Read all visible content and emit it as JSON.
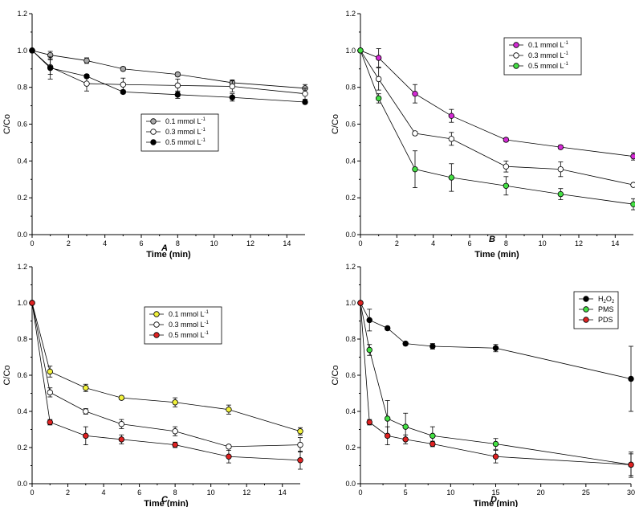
{
  "chart_data": [
    {
      "type": "line",
      "panel": "A",
      "xlabel": "Time (min)",
      "ylabel": "C/Co",
      "xlim": [
        0,
        15
      ],
      "ylim": [
        0,
        1.2
      ],
      "xticks": [
        0,
        2,
        4,
        6,
        8,
        10,
        12,
        14
      ],
      "yticks": [
        0.0,
        0.2,
        0.4,
        0.6,
        0.8,
        1.0,
        1.2
      ],
      "legend_position": "center-right",
      "series": [
        {
          "name": "0.1 mmol L",
          "sup": "-1",
          "marker": "#a8a8a8",
          "x": [
            0,
            1,
            3,
            5,
            8,
            11,
            15
          ],
          "y": [
            1.0,
            0.975,
            0.945,
            0.9,
            0.87,
            0.825,
            0.795
          ],
          "err": [
            0,
            0.02,
            0.015,
            0.01,
            0.01,
            0.015,
            0.02
          ]
        },
        {
          "name": "0.3 mmol L",
          "sup": "-1",
          "marker": "#ffffff",
          "x": [
            0,
            1,
            3,
            5,
            8,
            11,
            15
          ],
          "y": [
            1.0,
            0.91,
            0.82,
            0.815,
            0.81,
            0.805,
            0.765
          ],
          "err": [
            0,
            0.04,
            0.04,
            0.035,
            0.035,
            0.03,
            0.03
          ]
        },
        {
          "name": "0.5 mmol L",
          "sup": "-1",
          "marker": "#000000",
          "x": [
            0,
            1,
            3,
            5,
            8,
            11,
            15
          ],
          "y": [
            1.0,
            0.905,
            0.86,
            0.775,
            0.76,
            0.745,
            0.72
          ],
          "err": [
            0,
            0.06,
            0.01,
            0.01,
            0.02,
            0.02,
            0.01
          ]
        }
      ]
    },
    {
      "type": "line",
      "panel": "B",
      "xlabel": "Time (min)",
      "ylabel": "C/Co",
      "xlim": [
        0,
        15
      ],
      "ylim": [
        0,
        1.2
      ],
      "xticks": [
        0,
        2,
        4,
        6,
        8,
        10,
        12,
        14
      ],
      "yticks": [
        0.0,
        0.2,
        0.4,
        0.6,
        0.8,
        1.0,
        1.2
      ],
      "legend_position": "top-right",
      "series": [
        {
          "name": "0.1 mmol L",
          "sup": "-1",
          "marker": "#d42ad4",
          "x": [
            0,
            1,
            3,
            5,
            8,
            11,
            15
          ],
          "y": [
            1.0,
            0.96,
            0.765,
            0.645,
            0.515,
            0.475,
            0.425
          ],
          "err": [
            0,
            0.05,
            0.05,
            0.035,
            0.01,
            0.01,
            0.02
          ]
        },
        {
          "name": "0.3 mmol L",
          "sup": "-1",
          "marker": "#ffffff",
          "x": [
            0,
            1,
            3,
            5,
            8,
            11,
            15
          ],
          "y": [
            1.0,
            0.845,
            0.55,
            0.52,
            0.37,
            0.355,
            0.27
          ],
          "err": [
            0,
            0.06,
            0.01,
            0.035,
            0.03,
            0.04,
            0.01
          ]
        },
        {
          "name": "0.5 mmol L",
          "sup": "-1",
          "marker": "#44e044",
          "x": [
            0,
            1,
            3,
            5,
            8,
            11,
            15
          ],
          "y": [
            1.0,
            0.74,
            0.355,
            0.31,
            0.265,
            0.22,
            0.165
          ],
          "err": [
            0,
            0.025,
            0.1,
            0.075,
            0.05,
            0.03,
            0.03
          ]
        }
      ]
    },
    {
      "type": "line",
      "panel": "C",
      "xlabel": "Time (min)",
      "ylabel": "C/Co",
      "xlim": [
        0,
        15
      ],
      "ylim": [
        0,
        1.2
      ],
      "xticks": [
        0,
        2,
        4,
        6,
        8,
        10,
        12,
        14
      ],
      "yticks": [
        0.0,
        0.2,
        0.4,
        0.6,
        0.8,
        1.0,
        1.2
      ],
      "legend_position": "top-right",
      "series": [
        {
          "name": "0.1 mmol L",
          "sup": "-1",
          "marker": "#f2f23c",
          "x": [
            0,
            1,
            3,
            5,
            8,
            11,
            15
          ],
          "y": [
            1.0,
            0.62,
            0.53,
            0.475,
            0.45,
            0.41,
            0.29
          ],
          "err": [
            0,
            0.03,
            0.02,
            0.01,
            0.025,
            0.025,
            0.02
          ]
        },
        {
          "name": "0.3 mmol L",
          "sup": "-1",
          "marker": "#ffffff",
          "x": [
            0,
            1,
            3,
            5,
            8,
            11,
            15
          ],
          "y": [
            1.0,
            0.505,
            0.4,
            0.33,
            0.29,
            0.205,
            0.215
          ],
          "err": [
            0,
            0.025,
            0.015,
            0.025,
            0.025,
            0.01,
            0.04
          ]
        },
        {
          "name": "0.5 mmol L",
          "sup": "-1",
          "marker": "#e02222",
          "x": [
            0,
            1,
            3,
            5,
            8,
            11,
            15
          ],
          "y": [
            1.0,
            0.34,
            0.265,
            0.245,
            0.215,
            0.15,
            0.13
          ],
          "err": [
            0,
            0.015,
            0.05,
            0.025,
            0.015,
            0.035,
            0.05
          ]
        }
      ]
    },
    {
      "type": "line",
      "panel": "D",
      "xlabel": "Time (min)",
      "ylabel": "C/Co",
      "xlim": [
        0,
        30
      ],
      "ylim": [
        0,
        1.2
      ],
      "xticks": [
        0,
        5,
        10,
        15,
        20,
        25,
        30
      ],
      "yticks": [
        0.0,
        0.2,
        0.4,
        0.6,
        0.8,
        1.0,
        1.2
      ],
      "legend_position": "top-right",
      "series": [
        {
          "name": "H",
          "sub1": "2",
          "mid": "O",
          "sub2": "2",
          "label_full": "H2O2",
          "marker": "#000000",
          "x": [
            0,
            1,
            3,
            5,
            8,
            15,
            30
          ],
          "y": [
            1.0,
            0.905,
            0.86,
            0.775,
            0.76,
            0.75,
            0.58
          ],
          "err": [
            0,
            0.06,
            0.01,
            0.01,
            0.015,
            0.02,
            0.18
          ]
        },
        {
          "name": "PMS",
          "marker": "#44e044",
          "x": [
            0,
            1,
            3,
            5,
            8,
            15,
            30
          ],
          "y": [
            1.0,
            0.74,
            0.36,
            0.315,
            0.265,
            0.22,
            0.105
          ],
          "err": [
            0,
            0.03,
            0.1,
            0.075,
            0.05,
            0.03,
            0.07
          ]
        },
        {
          "name": "PDS",
          "marker": "#e02222",
          "x": [
            0,
            1,
            3,
            5,
            8,
            15,
            30
          ],
          "y": [
            1.0,
            0.34,
            0.265,
            0.245,
            0.22,
            0.15,
            0.105
          ],
          "err": [
            0,
            0.015,
            0.05,
            0.025,
            0.015,
            0.035,
            0.06
          ]
        }
      ]
    }
  ]
}
